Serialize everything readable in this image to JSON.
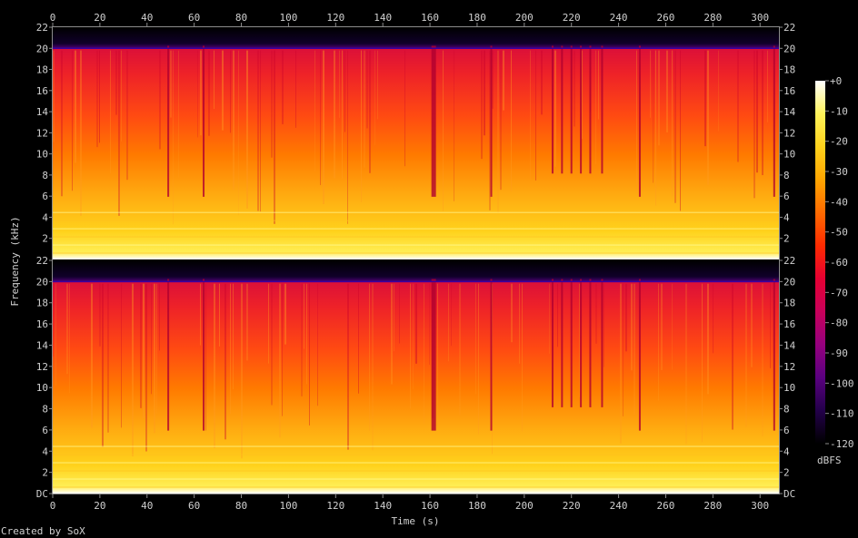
{
  "footer": {
    "credit": "Created by SoX"
  },
  "colors": {
    "background": "#000000",
    "frame": "#8c8c8c",
    "text": "#d0d0d0",
    "colormap": [
      "#ffffff",
      "#fff35a",
      "#ffd21c",
      "#ffa500",
      "#ff6a00",
      "#ff2a00",
      "#e60032",
      "#c8005a",
      "#96007e",
      "#5a0080",
      "#23004a",
      "#000000"
    ]
  },
  "chart_data": {
    "type": "heatmap",
    "xlabel": "Time (s)",
    "ylabel": "Frequency (kHz)",
    "colorbar_label": "dBFS",
    "xlim": [
      0,
      308
    ],
    "x_ticks": [
      "0",
      "20",
      "40",
      "60",
      "80",
      "100",
      "120",
      "140",
      "160",
      "180",
      "200",
      "220",
      "240",
      "260",
      "280",
      "300"
    ],
    "y_ticks_top": [
      "22",
      "20",
      "18",
      "16",
      "14",
      "12",
      "10",
      "8",
      "6",
      "4",
      "2"
    ],
    "y_ticks_bottom": [
      "22",
      "20",
      "18",
      "16",
      "14",
      "12",
      "10",
      "8",
      "6",
      "4",
      "2",
      "DC"
    ],
    "colorbar_ticks": [
      "+0",
      "-10",
      "-20",
      "-30",
      "-40",
      "-50",
      "-60",
      "-70",
      "-80",
      "-90",
      "-100",
      "-110",
      "-120"
    ],
    "zlim": [
      -120,
      0
    ],
    "channels": 2,
    "frequency_range_khz": [
      0,
      22
    ],
    "spectral_cutoff_khz": 20,
    "transient_dips_s": [
      49,
      64,
      161,
      186,
      212,
      216,
      220,
      224,
      228,
      233,
      249,
      306
    ]
  }
}
